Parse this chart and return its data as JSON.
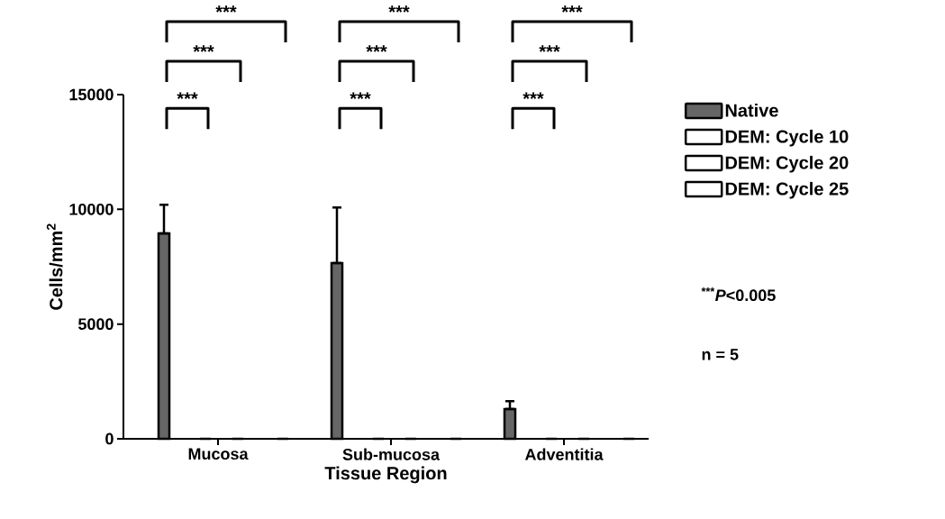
{
  "chart_data": {
    "type": "bar",
    "xlabel": "Tissue Region",
    "ylabel": "Cells/mm$^{2}$",
    "categories": [
      "Mucosa",
      "Sub-mucosa",
      "Adventitia"
    ],
    "series": [
      {
        "name": "Native",
        "color": "#666666",
        "values": [
          8950,
          7660,
          1300
        ],
        "errors": [
          [
            8950,
            10200
          ],
          [
            7660,
            10080
          ],
          [
            1300,
            1640
          ]
        ]
      },
      {
        "name": "DEM: Cycle 10",
        "color": "#ffffff",
        "values": [
          0,
          0,
          0
        ]
      },
      {
        "name": "DEM: Cycle 20",
        "color": "#ffffff",
        "values": [
          0,
          0,
          0
        ]
      },
      {
        "name": "DEM: Cycle 25",
        "color": "#ffffff",
        "values": [
          0,
          0,
          0
        ]
      }
    ],
    "ylim": [
      0,
      15000
    ],
    "yticks": [
      0,
      5000,
      10000,
      15000
    ],
    "grid": false,
    "legend": "right",
    "annotations": [
      "***",
      "***",
      "***",
      "***",
      "***",
      "***",
      "***",
      "***",
      "***",
      "$^{***}$*P*<0.005",
      "n = 5"
    ]
  }
}
